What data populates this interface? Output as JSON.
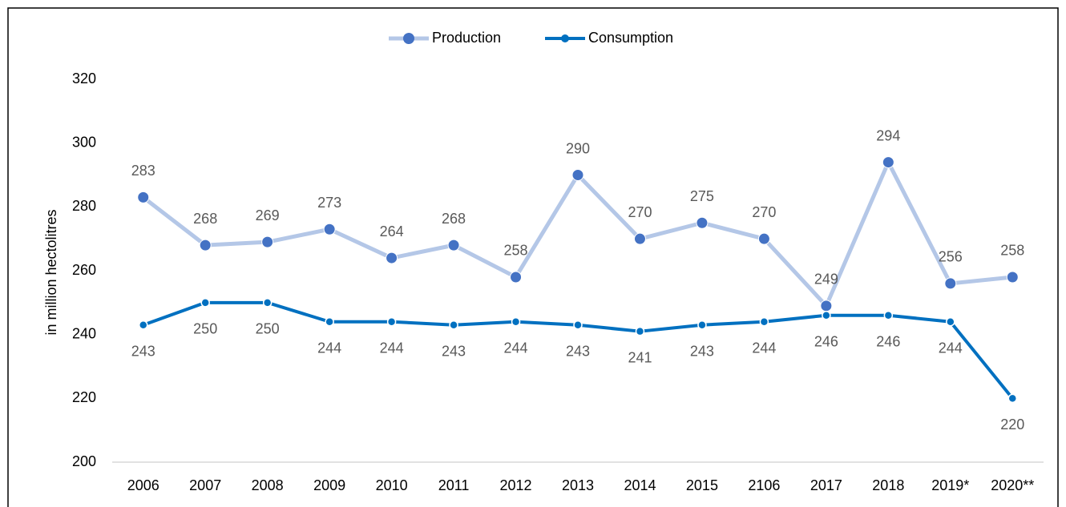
{
  "chart_data": {
    "type": "line",
    "y_axis_label": "in million hectolitres",
    "categories": [
      "2006",
      "2007",
      "2008",
      "2009",
      "2010",
      "2011",
      "2012",
      "2013",
      "2014",
      "2015",
      "2106",
      "2017",
      "2018",
      "2019*",
      "2020**"
    ],
    "series": [
      {
        "name": "Production",
        "color": "#b4c7e7",
        "marker_color": "#4472c4",
        "values": [
          283,
          268,
          269,
          273,
          264,
          268,
          258,
          290,
          270,
          275,
          270,
          249,
          294,
          256,
          258
        ]
      },
      {
        "name": "Consumption",
        "color": "#0070c0",
        "marker_color": "#0070c0",
        "values": [
          243,
          250,
          250,
          244,
          244,
          243,
          244,
          243,
          241,
          243,
          244,
          246,
          246,
          244,
          220
        ]
      }
    ],
    "ylim": [
      200,
      320
    ],
    "yticks": [
      200,
      220,
      240,
      260,
      280,
      300,
      320
    ],
    "grid": false,
    "legend": "top"
  }
}
